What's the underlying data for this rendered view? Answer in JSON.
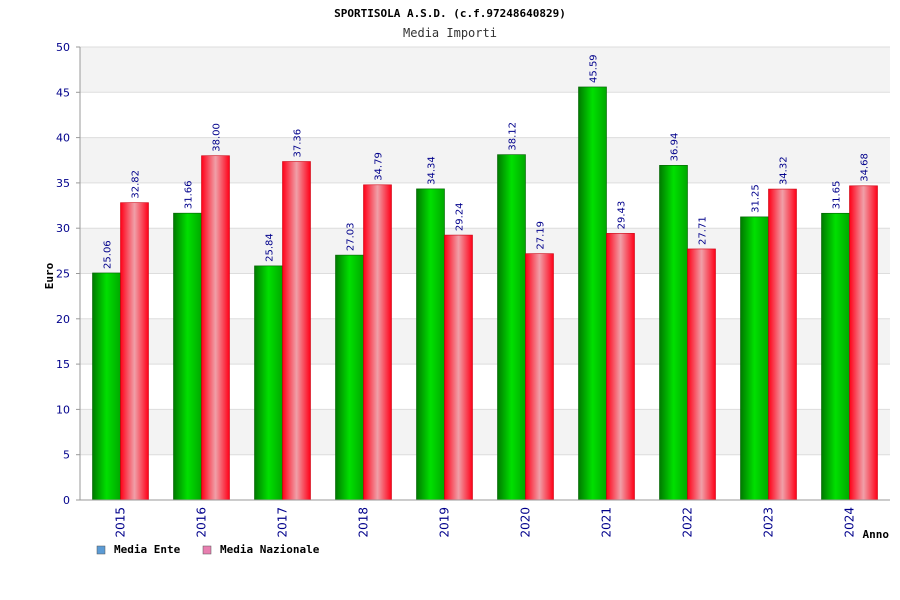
{
  "chart_data": {
    "type": "bar",
    "title": "SPORTISOLA A.S.D. (c.f.97248640829)",
    "subtitle": "Media Importi",
    "xlabel": "Anno",
    "ylabel": "Euro",
    "ylim": [
      0,
      50
    ],
    "yticks": [
      0,
      5,
      10,
      15,
      20,
      25,
      30,
      35,
      40,
      45,
      50
    ],
    "categories": [
      "2015",
      "2016",
      "2017",
      "2018",
      "2019",
      "2020",
      "2021",
      "2022",
      "2023",
      "2024"
    ],
    "series": [
      {
        "name": "Media Ente",
        "values": [
          25.06,
          31.66,
          25.84,
          27.03,
          34.34,
          38.12,
          45.59,
          36.94,
          31.25,
          31.65
        ],
        "labels": [
          "25.06",
          "31.66",
          "25.84",
          "27.03",
          "34.34",
          "38.12",
          "45.59",
          "36.94",
          "31.25",
          "31.65"
        ],
        "bar_color": "#00c000",
        "legend_color": "#5b9bd5"
      },
      {
        "name": "Media Nazionale",
        "values": [
          32.82,
          38.0,
          37.36,
          34.79,
          29.24,
          27.19,
          29.43,
          27.71,
          34.32,
          34.68
        ],
        "labels": [
          "32.82",
          "38.00",
          "37.36",
          "34.79",
          "29.24",
          "27.19",
          "29.43",
          "27.71",
          "34.32",
          "34.68"
        ],
        "bar_color": "#ff1a2e",
        "legend_color": "#e87fb0"
      }
    ],
    "grid": true,
    "legend_position": "bottom-left"
  }
}
